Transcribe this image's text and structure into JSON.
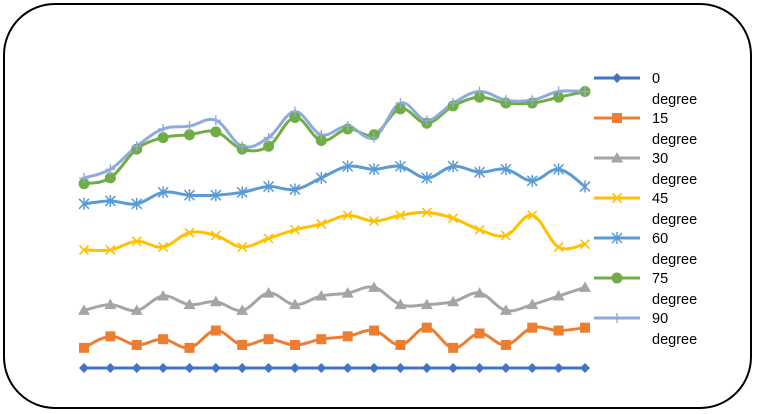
{
  "chart_data": {
    "type": "line",
    "title": "",
    "xlabel": "",
    "ylabel": "",
    "x": [
      1,
      2,
      3,
      4,
      5,
      6,
      7,
      8,
      9,
      10,
      11,
      12,
      13,
      14,
      15,
      16,
      17,
      18,
      19,
      20
    ],
    "ylim": [
      0,
      100
    ],
    "grid": false,
    "legend": "right",
    "series": [
      {
        "name": "0 degree",
        "color": "#4472C4",
        "marker": "diamond",
        "values": [
          0,
          0,
          0,
          0,
          0,
          0,
          0,
          0,
          0,
          0,
          0,
          0,
          0,
          0,
          0,
          0,
          0,
          0,
          0,
          0
        ]
      },
      {
        "name": "15 degree",
        "color": "#ED7D31",
        "marker": "square",
        "values": [
          7,
          11,
          8,
          10,
          7,
          13,
          8,
          10,
          8,
          10,
          11,
          13,
          8,
          14,
          7,
          12,
          8,
          14,
          13,
          14
        ]
      },
      {
        "name": "30 degree",
        "color": "#A5A5A5",
        "marker": "triangle",
        "values": [
          20,
          22,
          20,
          25,
          22,
          23,
          20,
          26,
          22,
          25,
          26,
          28,
          22,
          22,
          23,
          26,
          20,
          22,
          25,
          28
        ]
      },
      {
        "name": "45 degree",
        "color": "#FFC000",
        "marker": "x",
        "values": [
          41,
          41,
          44,
          42,
          47,
          46,
          42,
          45,
          48,
          50,
          53,
          51,
          53,
          54,
          52,
          48,
          46,
          53,
          42,
          43
        ]
      },
      {
        "name": "60 degree",
        "color": "#5B9BD5",
        "marker": "star",
        "values": [
          57,
          58,
          57,
          61,
          60,
          60,
          61,
          63,
          62,
          66,
          70,
          69,
          70,
          66,
          70,
          68,
          69,
          65,
          69,
          63
        ]
      },
      {
        "name": "75 degree",
        "color": "#70AD47",
        "marker": "circle",
        "values": [
          64,
          66,
          76,
          80,
          81,
          82,
          76,
          77,
          87,
          79,
          83,
          81,
          90,
          85,
          91,
          94,
          92,
          92,
          94,
          96
        ]
      },
      {
        "name": "90 degree",
        "color": "#8FAADC",
        "marker": "plus",
        "values": [
          66,
          69,
          77,
          83,
          84,
          86,
          77,
          80,
          89,
          81,
          84,
          80,
          92,
          86,
          92,
          96,
          93,
          93,
          96,
          96
        ]
      }
    ]
  }
}
